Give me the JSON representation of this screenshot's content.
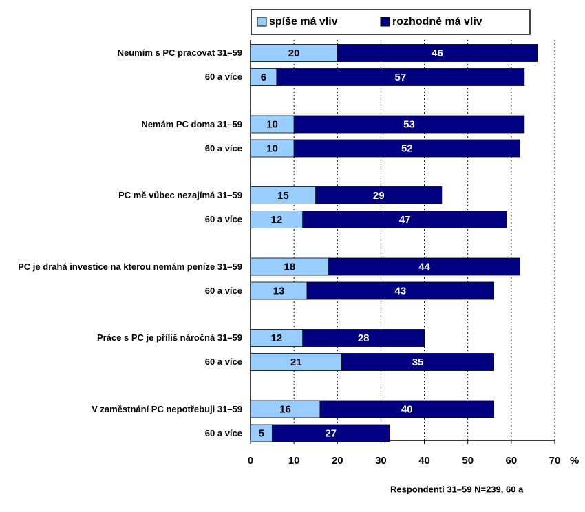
{
  "chart_data": {
    "type": "stacked-barh",
    "categories": [
      "Neumím s PC pracovat 31–59",
      "60 a více",
      "Nemám PC doma 31–59",
      "60 a více",
      "PC mě vůbec nezajímá 31–59",
      "60 a více",
      "PC je drahá investice na kterou nemám peníze 31–59",
      "60 a více",
      "Práce s PC je příliš náročná 31–59",
      "60 a více",
      "V zaměstnání PC nepotřebuji 31–59",
      "60 a více"
    ],
    "series": [
      {
        "name": "spíše má vliv",
        "color": "#99ccff",
        "values": [
          20,
          6,
          10,
          10,
          15,
          12,
          18,
          13,
          12,
          21,
          16,
          5
        ]
      },
      {
        "name": "rozhodně má vliv",
        "color": "#000080",
        "values": [
          46,
          57,
          53,
          52,
          29,
          47,
          44,
          43,
          28,
          35,
          40,
          27
        ]
      }
    ],
    "xlabel": "%",
    "xlim": [
      0,
      70
    ],
    "xticks": [
      0,
      10,
      20,
      30,
      40,
      50,
      60,
      70
    ],
    "grid": true,
    "legend": "top",
    "note": "Respondenti 31–59 N=239, 60 a"
  }
}
